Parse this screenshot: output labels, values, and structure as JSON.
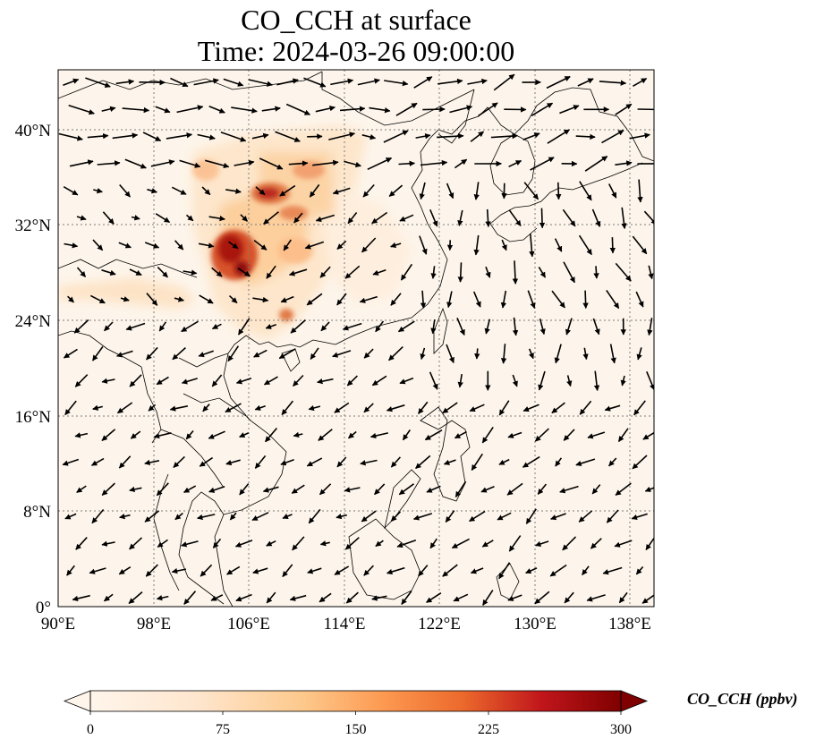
{
  "title": {
    "line1": "CO_CCH at surface",
    "line2": "Time: 2024-03-26 09:00:00"
  },
  "map": {
    "lon_range": [
      90,
      140
    ],
    "lat_range": [
      0,
      45
    ],
    "lon_ticks": [
      "90°E",
      "98°E",
      "106°E",
      "114°E",
      "122°E",
      "130°E",
      "138°E"
    ],
    "lat_ticks": [
      "0°",
      "8°N",
      "16°N",
      "24°N",
      "32°N",
      "40°N"
    ],
    "lon_tick_values": [
      90,
      98,
      106,
      114,
      122,
      130,
      138
    ],
    "lat_tick_values": [
      0,
      8,
      16,
      24,
      32,
      40
    ],
    "gridlines": true,
    "field_background": "#fdf5eb",
    "coastline_color": "#000000",
    "wind_vectors": "black arrows"
  },
  "colorbar": {
    "label": "CO_CCH (ppbv)",
    "ticks": [
      "0",
      "75",
      "150",
      "225",
      "300"
    ],
    "tick_values": [
      0,
      75,
      150,
      225,
      300
    ],
    "range": [
      0,
      300
    ],
    "colormap": [
      "#fff5eb",
      "#fdd49e",
      "#fdae6b",
      "#f16913",
      "#d7301f",
      "#a50f15",
      "#67000d"
    ],
    "extend": "both"
  }
}
